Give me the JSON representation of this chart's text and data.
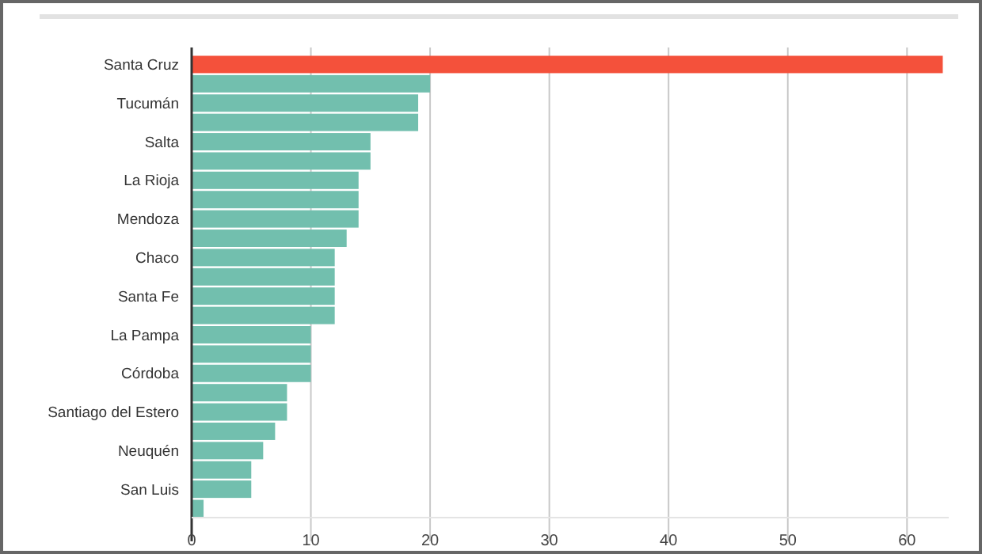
{
  "chart_data": {
    "type": "bar",
    "orientation": "horizontal",
    "categories": [
      "Santa Cruz",
      null,
      "Tucumán",
      null,
      "Salta",
      null,
      "La Rioja",
      null,
      "Mendoza",
      null,
      "Chaco",
      null,
      "Santa Fe",
      null,
      "La Pampa",
      null,
      "Córdoba",
      null,
      "Santiago del Estero",
      null,
      "Neuquén",
      null,
      "San Luis",
      null
    ],
    "values": [
      63,
      20,
      19,
      19,
      15,
      15,
      14,
      14,
      14,
      13,
      12,
      12,
      12,
      12,
      10,
      10,
      10,
      8,
      8,
      7,
      6,
      5,
      5,
      1
    ],
    "colors": [
      "#f4513b",
      "#72bfae",
      "#72bfae",
      "#72bfae",
      "#72bfae",
      "#72bfae",
      "#72bfae",
      "#72bfae",
      "#72bfae",
      "#72bfae",
      "#72bfae",
      "#72bfae",
      "#72bfae",
      "#72bfae",
      "#72bfae",
      "#72bfae",
      "#72bfae",
      "#72bfae",
      "#72bfae",
      "#72bfae",
      "#72bfae",
      "#72bfae",
      "#72bfae",
      "#72bfae"
    ],
    "xlim": [
      0,
      63.5
    ],
    "xticks": [
      0,
      10,
      20,
      30,
      40,
      50,
      60
    ],
    "grid": "x"
  }
}
